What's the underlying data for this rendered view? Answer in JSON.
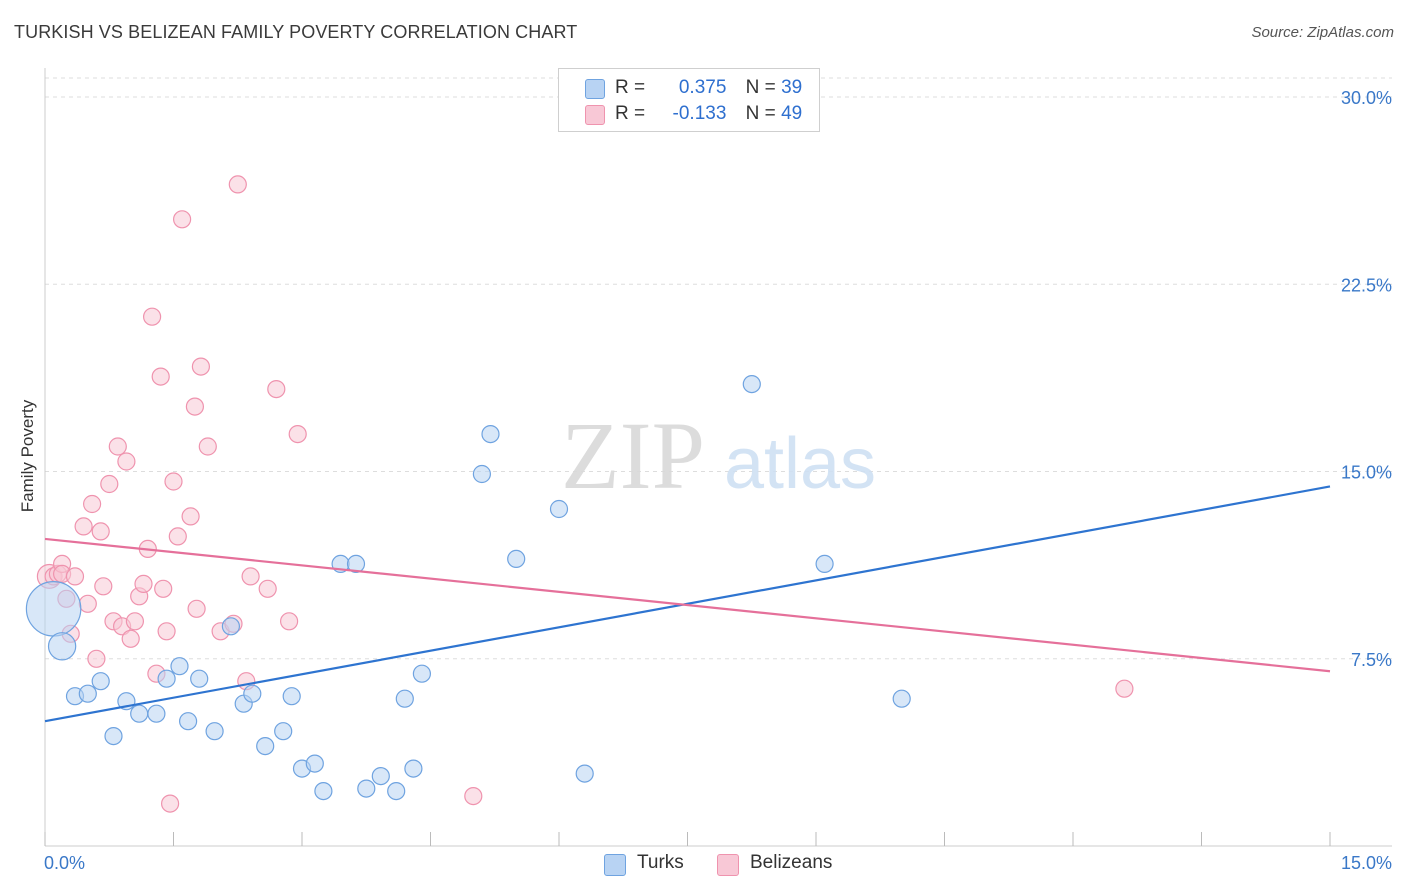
{
  "header": {
    "title": "TURKISH VS BELIZEAN FAMILY POVERTY CORRELATION CHART",
    "source": "Source: ZipAtlas.com"
  },
  "legend": {
    "turks": {
      "r_label": "R =",
      "r_value": "0.375",
      "n_label": "N =",
      "n_value": "39"
    },
    "belizeans": {
      "r_label": "R =",
      "r_value": "-0.133",
      "n_label": "N =",
      "n_value": "49"
    }
  },
  "bottom_legend": {
    "turks": "Turks",
    "belizeans": "Belizeans"
  },
  "watermark": {
    "zip": "ZIP",
    "atlas": "atlas"
  },
  "colors": {
    "turks_fill": "#b8d3f3",
    "turks_stroke": "#6fa3e0",
    "turks_line": "#2e74d0",
    "belizeans_fill": "#f8c8d6",
    "belizeans_stroke": "#ef93ae",
    "belizeans_line": "#e5709a",
    "axis_label": "#3a78c8",
    "grid": "#dddddd"
  },
  "chart_data": {
    "type": "scatter",
    "title": "TURKISH VS BELIZEAN FAMILY POVERTY CORRELATION CHART",
    "xlabel": "",
    "ylabel": "Family Poverty",
    "xlim": [
      0,
      15
    ],
    "ylim": [
      0,
      31
    ],
    "x_tick_labels": [
      "0.0%",
      "15.0%"
    ],
    "y_ticks": [
      7.5,
      15.0,
      22.5,
      30.0
    ],
    "y_tick_labels": [
      "7.5%",
      "15.0%",
      "22.5%",
      "30.0%"
    ],
    "series": [
      {
        "name": "Turks",
        "r": 0.375,
        "n": 39,
        "trend": {
          "x": [
            0,
            15
          ],
          "y": [
            5.0,
            14.4
          ]
        },
        "points": [
          [
            0.1,
            9.5,
            3.2
          ],
          [
            0.2,
            8.0,
            1.6
          ],
          [
            0.35,
            6.0,
            1.0
          ],
          [
            0.5,
            6.1,
            1.0
          ],
          [
            0.65,
            6.6,
            1.0
          ],
          [
            0.8,
            4.4,
            1.0
          ],
          [
            0.95,
            5.8,
            1.0
          ],
          [
            1.1,
            5.3,
            1.0
          ],
          [
            1.3,
            5.3,
            1.0
          ],
          [
            1.42,
            6.7,
            1.0
          ],
          [
            1.57,
            7.2,
            1.0
          ],
          [
            1.67,
            5.0,
            1.0
          ],
          [
            1.8,
            6.7,
            1.0
          ],
          [
            1.98,
            4.6,
            1.0
          ],
          [
            2.17,
            8.8,
            1.0
          ],
          [
            2.32,
            5.7,
            1.0
          ],
          [
            2.42,
            6.1,
            1.0
          ],
          [
            2.57,
            4.0,
            1.0
          ],
          [
            2.88,
            6.0,
            1.0
          ],
          [
            2.78,
            4.6,
            1.0
          ],
          [
            3.0,
            3.1,
            1.0
          ],
          [
            3.15,
            3.3,
            1.0
          ],
          [
            3.25,
            2.2,
            1.0
          ],
          [
            3.45,
            11.3,
            1.0
          ],
          [
            3.63,
            11.3,
            1.0
          ],
          [
            3.75,
            2.3,
            1.0
          ],
          [
            3.92,
            2.8,
            1.0
          ],
          [
            4.1,
            2.2,
            1.0
          ],
          [
            4.2,
            5.9,
            1.0
          ],
          [
            4.3,
            3.1,
            1.0
          ],
          [
            4.4,
            6.9,
            1.0
          ],
          [
            5.1,
            14.9,
            1.0
          ],
          [
            5.2,
            16.5,
            1.0
          ],
          [
            5.5,
            11.5,
            1.0
          ],
          [
            6.0,
            13.5,
            1.0
          ],
          [
            6.3,
            2.9,
            1.0
          ],
          [
            8.25,
            18.5,
            1.0
          ],
          [
            9.1,
            11.3,
            1.0
          ],
          [
            10.0,
            5.9,
            1.0
          ]
        ]
      },
      {
        "name": "Belizeans",
        "r": -0.133,
        "n": 49,
        "trend": {
          "x": [
            0,
            15
          ],
          "y": [
            12.3,
            7.0
          ]
        },
        "points": [
          [
            0.05,
            10.8,
            1.4
          ],
          [
            0.1,
            10.8,
            1.0
          ],
          [
            0.15,
            10.9,
            1.0
          ],
          [
            0.2,
            11.3,
            1.0
          ],
          [
            0.2,
            10.9,
            1.0
          ],
          [
            0.25,
            9.9,
            1.0
          ],
          [
            0.3,
            8.5,
            1.0
          ],
          [
            0.35,
            10.8,
            1.0
          ],
          [
            0.45,
            12.8,
            1.0
          ],
          [
            0.5,
            9.7,
            1.0
          ],
          [
            0.55,
            13.7,
            1.0
          ],
          [
            0.6,
            7.5,
            1.0
          ],
          [
            0.65,
            12.6,
            1.0
          ],
          [
            0.68,
            10.4,
            1.0
          ],
          [
            0.75,
            14.5,
            1.0
          ],
          [
            0.8,
            9.0,
            1.0
          ],
          [
            0.85,
            16.0,
            1.0
          ],
          [
            0.9,
            8.8,
            1.0
          ],
          [
            0.95,
            15.4,
            1.0
          ],
          [
            1.0,
            8.3,
            1.0
          ],
          [
            1.05,
            9.0,
            1.0
          ],
          [
            1.1,
            10.0,
            1.0
          ],
          [
            1.15,
            10.5,
            1.0
          ],
          [
            1.2,
            11.9,
            1.0
          ],
          [
            1.25,
            21.2,
            1.0
          ],
          [
            1.3,
            6.9,
            1.0
          ],
          [
            1.35,
            18.8,
            1.0
          ],
          [
            1.38,
            10.3,
            1.0
          ],
          [
            1.42,
            8.6,
            1.0
          ],
          [
            1.46,
            1.7,
            1.0
          ],
          [
            1.5,
            14.6,
            1.0
          ],
          [
            1.55,
            12.4,
            1.0
          ],
          [
            1.6,
            25.1,
            1.0
          ],
          [
            1.7,
            13.2,
            1.0
          ],
          [
            1.75,
            17.6,
            1.0
          ],
          [
            1.77,
            9.5,
            1.0
          ],
          [
            1.82,
            19.2,
            1.0
          ],
          [
            1.9,
            16.0,
            1.0
          ],
          [
            2.05,
            8.6,
            1.0
          ],
          [
            2.2,
            8.9,
            1.0
          ],
          [
            2.25,
            26.5,
            1.0
          ],
          [
            2.35,
            6.6,
            1.0
          ],
          [
            2.4,
            10.8,
            1.0
          ],
          [
            2.6,
            10.3,
            1.0
          ],
          [
            2.7,
            18.3,
            1.0
          ],
          [
            2.85,
            9.0,
            1.0
          ],
          [
            2.95,
            16.5,
            1.0
          ],
          [
            5.0,
            2.0,
            1.0
          ],
          [
            12.6,
            6.3,
            1.0
          ]
        ]
      }
    ]
  }
}
